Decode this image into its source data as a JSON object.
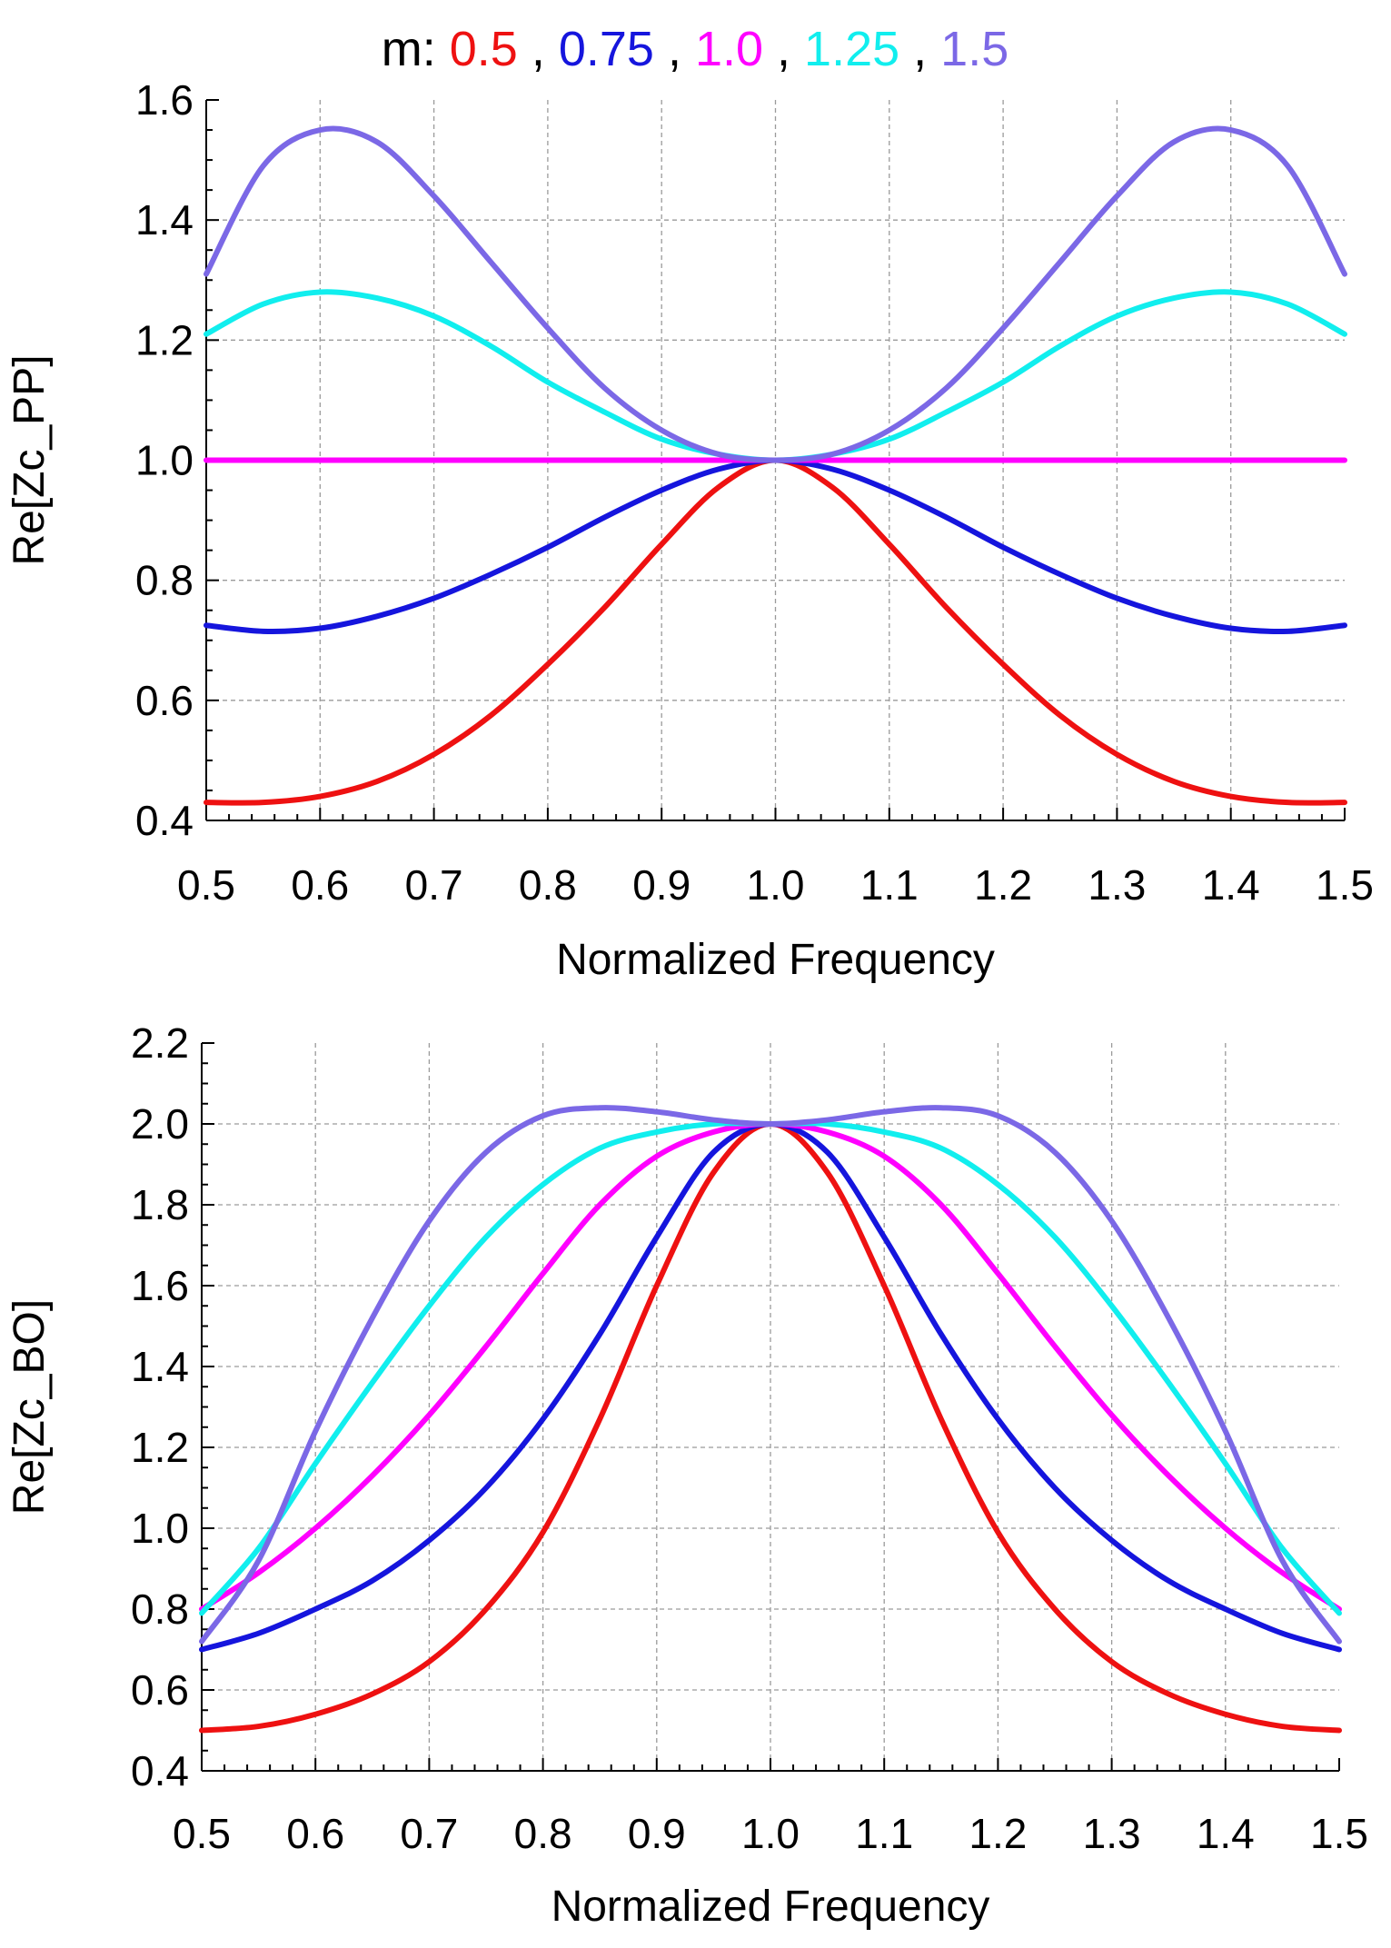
{
  "legend": {
    "prefix": "m:",
    "separator": ",",
    "entries": [
      {
        "label": "0.5",
        "color": "#ee1111"
      },
      {
        "label": "0.75",
        "color": "#1515dd"
      },
      {
        "label": "1.0",
        "color": "#ff00ff"
      },
      {
        "label": "1.25",
        "color": "#11eeee"
      },
      {
        "label": "1.5",
        "color": "#7b68e6"
      }
    ]
  },
  "chart_data": [
    {
      "type": "line",
      "xlabel": "Normalized Frequency",
      "ylabel": "Re[Zc_PP]",
      "xlim": [
        0.5,
        1.5
      ],
      "ylim": [
        0.4,
        1.6
      ],
      "xticks": [
        "0.5",
        "0.6",
        "0.7",
        "0.8",
        "0.9",
        "1.0",
        "1.1",
        "1.2",
        "1.3",
        "1.4",
        "1.5"
      ],
      "yticks": [
        "0.4",
        "0.6",
        "0.8",
        "1.0",
        "1.2",
        "1.4",
        "1.6"
      ],
      "grid": true,
      "x": [
        0.5,
        0.55,
        0.6,
        0.65,
        0.7,
        0.75,
        0.8,
        0.85,
        0.9,
        0.95,
        1.0,
        1.05,
        1.1,
        1.15,
        1.2,
        1.25,
        1.3,
        1.35,
        1.4,
        1.45,
        1.5
      ],
      "series": [
        {
          "name": "0.5",
          "color": "#ee1111",
          "values": [
            0.43,
            0.43,
            0.44,
            0.465,
            0.51,
            0.575,
            0.66,
            0.755,
            0.86,
            0.955,
            1.0,
            0.955,
            0.86,
            0.755,
            0.66,
            0.575,
            0.51,
            0.465,
            0.44,
            0.43,
            0.43
          ]
        },
        {
          "name": "0.75",
          "color": "#1515dd",
          "values": [
            0.725,
            0.715,
            0.72,
            0.74,
            0.77,
            0.81,
            0.855,
            0.905,
            0.95,
            0.985,
            1.0,
            0.985,
            0.95,
            0.905,
            0.855,
            0.81,
            0.77,
            0.74,
            0.72,
            0.715,
            0.725
          ]
        },
        {
          "name": "1.0",
          "color": "#ff00ff",
          "values": [
            1.0,
            1.0,
            1.0,
            1.0,
            1.0,
            1.0,
            1.0,
            1.0,
            1.0,
            1.0,
            1.0,
            1.0,
            1.0,
            1.0,
            1.0,
            1.0,
            1.0,
            1.0,
            1.0,
            1.0,
            1.0
          ]
        },
        {
          "name": "1.25",
          "color": "#11eeee",
          "values": [
            1.21,
            1.26,
            1.28,
            1.27,
            1.24,
            1.19,
            1.13,
            1.08,
            1.035,
            1.01,
            1.0,
            1.01,
            1.035,
            1.08,
            1.13,
            1.19,
            1.24,
            1.27,
            1.28,
            1.26,
            1.21
          ]
        },
        {
          "name": "1.5",
          "color": "#7b68e6",
          "values": [
            1.31,
            1.49,
            1.55,
            1.53,
            1.44,
            1.33,
            1.22,
            1.12,
            1.05,
            1.01,
            1.0,
            1.01,
            1.05,
            1.12,
            1.22,
            1.33,
            1.44,
            1.53,
            1.55,
            1.49,
            1.31
          ]
        }
      ]
    },
    {
      "type": "line",
      "xlabel": "Normalized Frequency",
      "ylabel": "Re[Zc_BO]",
      "xlim": [
        0.5,
        1.5
      ],
      "ylim": [
        0.4,
        2.2
      ],
      "xticks": [
        "0.5",
        "0.6",
        "0.7",
        "0.8",
        "0.9",
        "1.0",
        "1.1",
        "1.2",
        "1.3",
        "1.4",
        "1.5"
      ],
      "yticks": [
        "0.4",
        "0.6",
        "0.8",
        "1.0",
        "1.2",
        "1.4",
        "1.6",
        "1.8",
        "2.0",
        "2.2"
      ],
      "grid": true,
      "x": [
        0.5,
        0.55,
        0.6,
        0.65,
        0.7,
        0.75,
        0.8,
        0.85,
        0.9,
        0.95,
        1.0,
        1.05,
        1.1,
        1.15,
        1.2,
        1.25,
        1.3,
        1.35,
        1.4,
        1.45,
        1.5
      ],
      "series": [
        {
          "name": "0.5",
          "color": "#ee1111",
          "values": [
            0.5,
            0.51,
            0.54,
            0.59,
            0.67,
            0.8,
            0.99,
            1.27,
            1.6,
            1.88,
            2.0,
            1.88,
            1.6,
            1.27,
            0.99,
            0.8,
            0.67,
            0.59,
            0.54,
            0.51,
            0.5
          ]
        },
        {
          "name": "0.75",
          "color": "#1515dd",
          "values": [
            0.7,
            0.74,
            0.8,
            0.87,
            0.97,
            1.1,
            1.27,
            1.48,
            1.72,
            1.93,
            2.0,
            1.93,
            1.72,
            1.48,
            1.27,
            1.1,
            0.97,
            0.87,
            0.8,
            0.74,
            0.7
          ]
        },
        {
          "name": "1.0",
          "color": "#ff00ff",
          "values": [
            0.8,
            0.89,
            1.0,
            1.13,
            1.28,
            1.45,
            1.63,
            1.8,
            1.92,
            1.98,
            2.0,
            1.98,
            1.92,
            1.8,
            1.63,
            1.45,
            1.28,
            1.13,
            1.0,
            0.89,
            0.8
          ]
        },
        {
          "name": "1.25",
          "color": "#11eeee",
          "values": [
            0.79,
            0.95,
            1.16,
            1.36,
            1.55,
            1.72,
            1.85,
            1.94,
            1.98,
            2.0,
            2.0,
            2.0,
            1.98,
            1.94,
            1.85,
            1.72,
            1.55,
            1.36,
            1.16,
            0.95,
            0.79
          ]
        },
        {
          "name": "1.5",
          "color": "#7b68e6",
          "values": [
            0.72,
            0.92,
            1.24,
            1.52,
            1.76,
            1.93,
            2.02,
            2.04,
            2.03,
            2.01,
            2.0,
            2.01,
            2.03,
            2.04,
            2.02,
            1.93,
            1.76,
            1.52,
            1.24,
            0.92,
            0.72
          ]
        }
      ]
    }
  ]
}
